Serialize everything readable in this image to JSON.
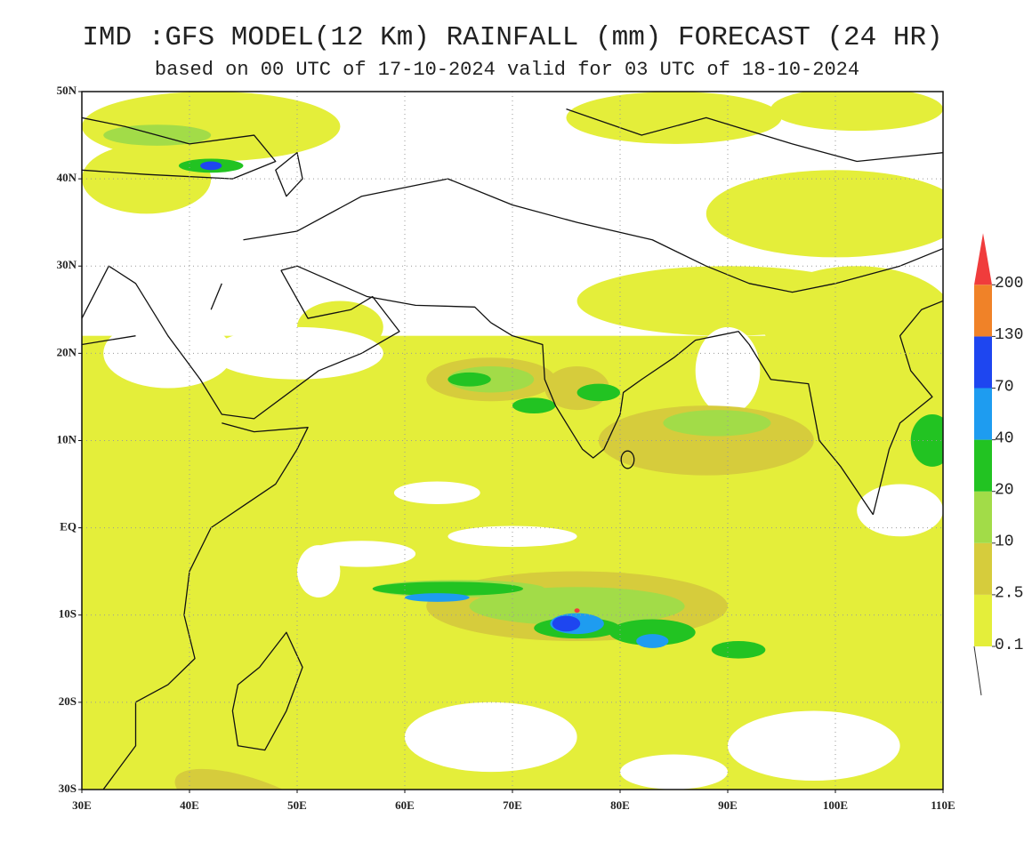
{
  "title": "IMD :GFS MODEL(12 Km) RAINFALL (mm) FORECAST (24 HR)",
  "subtitle": "based on 00 UTC of 17-10-2024 valid for 03 UTC of 18-10-2024",
  "lat_labels": [
    "50N",
    "40N",
    "30N",
    "20N",
    "10N",
    "EQ",
    "10S",
    "20S",
    "30S"
  ],
  "lon_labels": [
    "30E",
    "40E",
    "50E",
    "60E",
    "70E",
    "80E",
    "90E",
    "100E",
    "110E"
  ],
  "legend": {
    "labels": [
      "0.1",
      "2.5",
      "10",
      "20",
      "40",
      "70",
      "130",
      "200"
    ],
    "colors": [
      "#e4ee3a",
      "#d6cc3c",
      "#a2dc48",
      "#22c322",
      "#1e9cf0",
      "#1e46f0",
      "#f08228",
      "#f03c3c"
    ]
  }
}
